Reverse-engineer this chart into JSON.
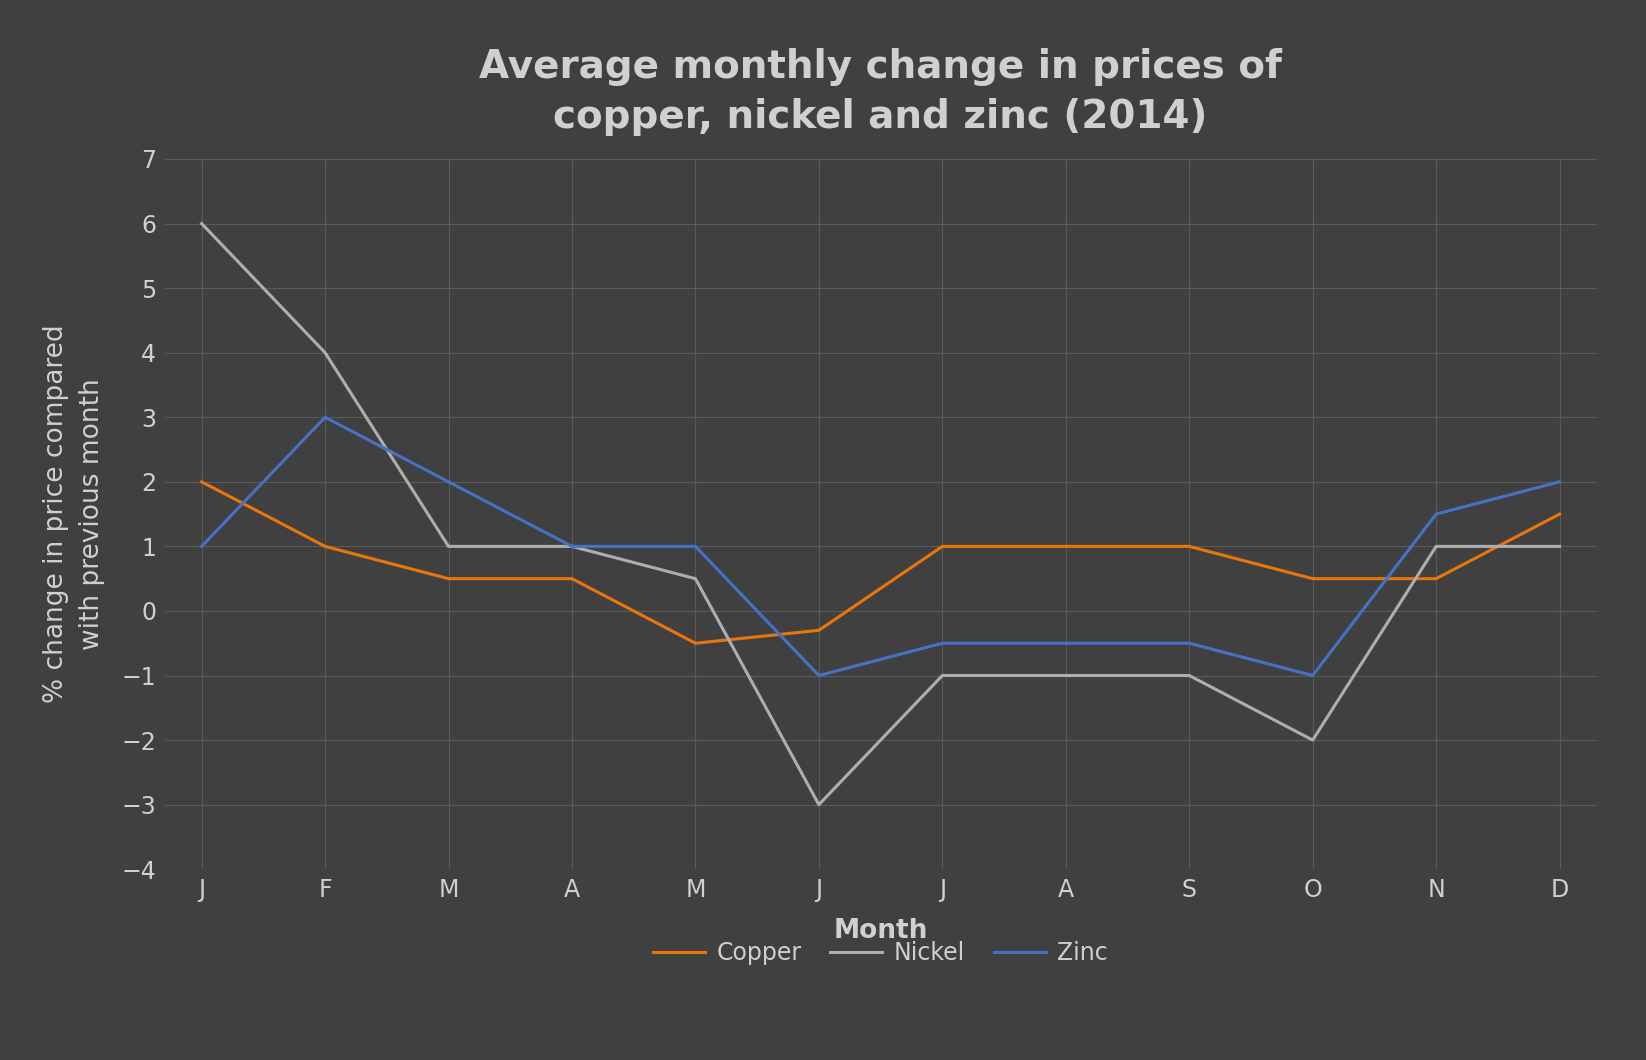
{
  "title": "Average monthly change in prices of\ncopper, nickel and zinc (2014)",
  "xlabel": "Month",
  "ylabel": "% change in price compared\nwith previous month",
  "months": [
    "J",
    "F",
    "M",
    "A",
    "M",
    "J",
    "J",
    "A",
    "S",
    "O",
    "N",
    "D"
  ],
  "copper": [
    2.0,
    1.0,
    0.5,
    0.5,
    -0.5,
    -0.3,
    1.0,
    1.0,
    1.0,
    0.5,
    0.5,
    1.5
  ],
  "nickel": [
    6.0,
    4.0,
    1.0,
    1.0,
    0.5,
    -3.0,
    -1.0,
    -1.0,
    -1.0,
    -2.0,
    1.0,
    1.0
  ],
  "zinc": [
    1.0,
    3.0,
    2.0,
    1.0,
    1.0,
    -1.0,
    -0.5,
    -0.5,
    -0.5,
    -1.0,
    1.5,
    2.0
  ],
  "copper_color": "#E8760A",
  "nickel_color": "#AEAEAE",
  "zinc_color": "#4472C4",
  "background_color": "#404040",
  "grid_color": "#5a5a5a",
  "text_color": "#D0D0D0",
  "ylim": [
    -4,
    7
  ],
  "yticks": [
    -4,
    -3,
    -2,
    -1,
    0,
    1,
    2,
    3,
    4,
    5,
    6,
    7
  ],
  "line_width": 2.2,
  "title_fontsize": 28,
  "label_fontsize": 19,
  "tick_fontsize": 17,
  "legend_fontsize": 17
}
